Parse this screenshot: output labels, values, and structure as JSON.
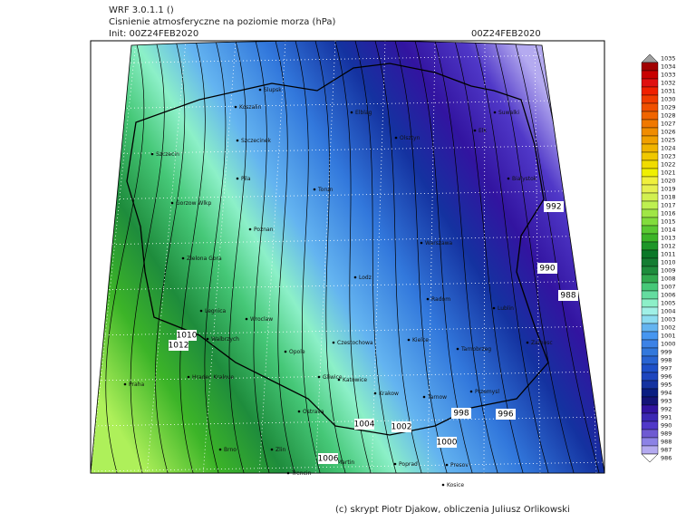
{
  "header": {
    "model": "WRF 3.0.1.1 ()",
    "title": "Cisnienie atmosferyczne na poziomie morza (hPa)",
    "init": "Init: 00Z24FEB2020",
    "valid": "00Z24FEB2020"
  },
  "footer": "(c) skrypt Piotr Djakow, obliczenia Juliusz Orlikowski",
  "cities": [
    "Slupsk",
    "Koszalin",
    "Szczecinek",
    "Szczecin",
    "Pila",
    "Gorzow Wlkp",
    "Torun",
    "Elblag",
    "Olsztyn",
    "Elk",
    "Suwalki",
    "Bialystok",
    "Poznan",
    "Warszawa",
    "Zielona Gora",
    "Lodz",
    "Radom",
    "Lublin",
    "Legnica",
    "Wroclaw",
    "Walbrzych",
    "Opole",
    "Czestochowa",
    "Kielce",
    "Tarnobrzeg",
    "Zamosc",
    "Praha",
    "Hradec Kralove",
    "Gliwice",
    "Katowice",
    "Krakow",
    "Tarnow",
    "Przemysl",
    "Ostrava",
    "Brno",
    "Zlin",
    "Martin",
    "Trencin",
    "Poprad",
    "Presov",
    "Kosice"
  ],
  "contour_labels": [
    1010,
    1012,
    992,
    990,
    988,
    1004,
    1002,
    998,
    996,
    1000,
    1006
  ],
  "colorbar": {
    "labels": [
      1035,
      1034,
      1033,
      1032,
      1031,
      1030,
      1029,
      1028,
      1027,
      1026,
      1025,
      1024,
      1023,
      1022,
      1021,
      1020,
      1019,
      1018,
      1017,
      1016,
      1015,
      1014,
      1013,
      1012,
      1011,
      1010,
      1009,
      1008,
      1007,
      1006,
      1005,
      1004,
      1003,
      1002,
      1001,
      1000,
      999,
      998,
      997,
      996,
      995,
      994,
      993,
      992,
      991,
      990,
      989,
      988,
      987,
      986
    ],
    "colors": [
      "#a0a0a0",
      "#a00000",
      "#c80000",
      "#e01010",
      "#f02000",
      "#f03c00",
      "#f05000",
      "#f06400",
      "#f07800",
      "#f08c00",
      "#f0a000",
      "#f0b400",
      "#f0c800",
      "#f0dc00",
      "#f0f000",
      "#f0f03c",
      "#e6f050",
      "#d2f050",
      "#bef050",
      "#a0e646",
      "#82dc3c",
      "#5ac832",
      "#3cb428",
      "#1e9628",
      "#0a7828",
      "#147d32",
      "#1e8c3c",
      "#32aa50",
      "#46c878",
      "#64dca0",
      "#8cf0c8",
      "#a0f0e6",
      "#8cdcf0",
      "#64b4f0",
      "#4696f0",
      "#3c82e6",
      "#3278dc",
      "#2864d2",
      "#1e50c8",
      "#1e46be",
      "#1432a0",
      "#0a1e82",
      "#141478",
      "#3214a0",
      "#3c28b4",
      "#5038c8",
      "#6e5ad2",
      "#8c82e6",
      "#b4aaf0",
      "#ffffff"
    ]
  }
}
